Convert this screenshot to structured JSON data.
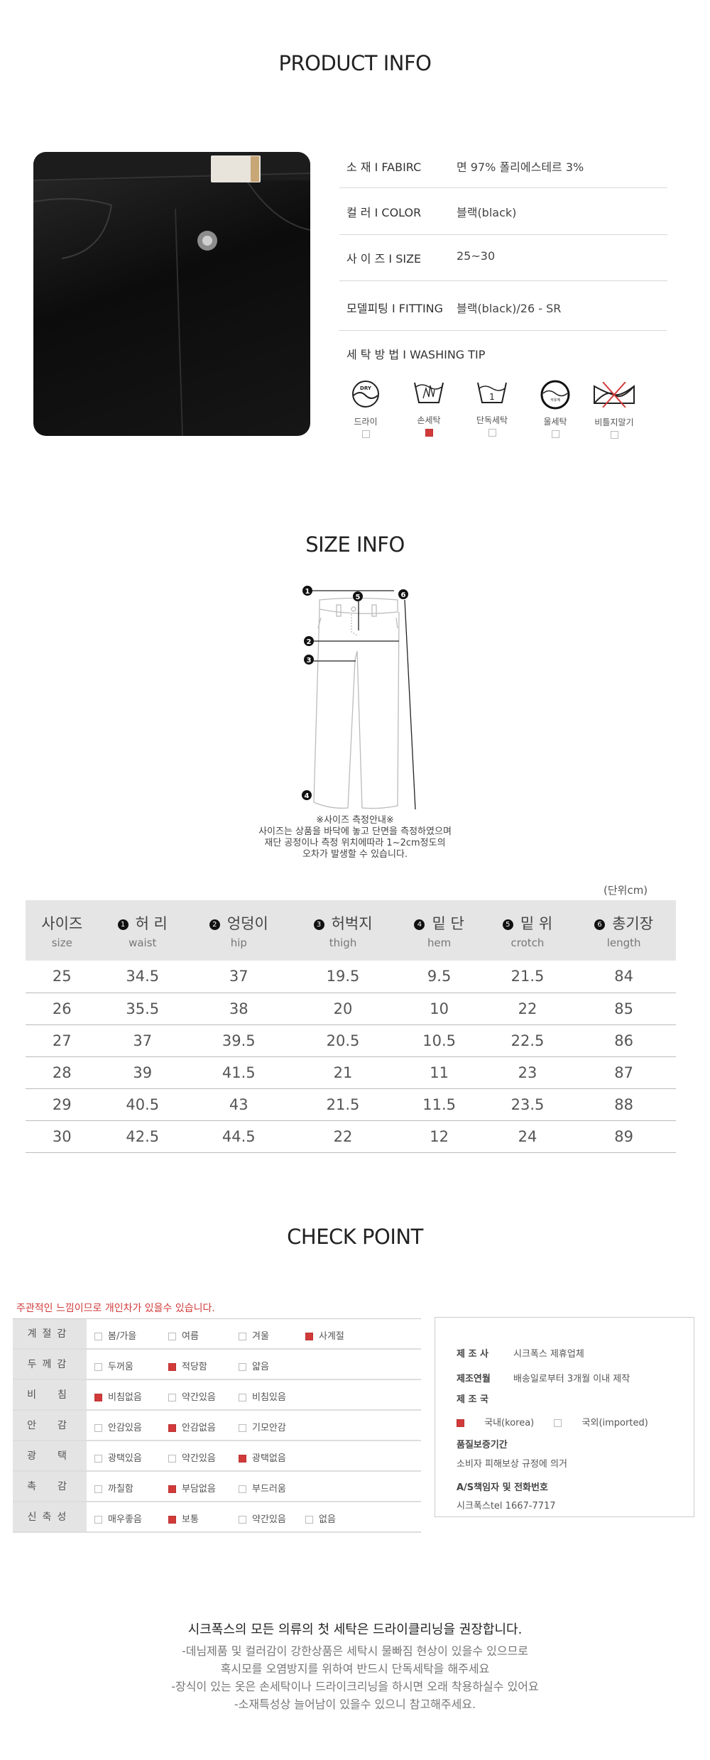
{
  "product_info": {
    "title": "PRODUCT INFO",
    "rows": [
      {
        "label": "소 재 Ι FABIRC",
        "value": "면 97% 폴리에스테르 3%"
      },
      {
        "label": "컬 러 Ι COLOR",
        "value": "블랙(black)"
      },
      {
        "label": "사 이 즈 Ι SIZE",
        "value": "25~30"
      },
      {
        "label": "모델피팅 Ι FITTING",
        "value": "블랙(black)/26  -  SR"
      }
    ],
    "washing_label": "세 탁 방 법 Ι WASHING TIP",
    "washing": [
      {
        "icon": "dry-clean-icon",
        "label": "드라이",
        "checked": false,
        "icon_text": "DRY"
      },
      {
        "icon": "hand-wash-icon",
        "label": "손세탁",
        "checked": true
      },
      {
        "icon": "separate-wash-icon",
        "label": "단독세탁",
        "checked": false,
        "icon_text": "1"
      },
      {
        "icon": "wool-wash-icon",
        "label": "울세탁",
        "checked": false,
        "icon_text": "석유계"
      },
      {
        "icon": "no-wring-icon",
        "label": "비틀지말기",
        "checked": false
      }
    ]
  },
  "size_info": {
    "title": "SIZE INFO",
    "diagram_markers": [
      "1",
      "2",
      "3",
      "4",
      "5",
      "6"
    ],
    "notes": [
      "※사이즈 측정안내※",
      "사이즈는 상품을 바닥에 놓고 단면을 측정하였으며",
      "재단 공정이나 측정 위치에따라 1~2cm정도의",
      "오차가 발생할 수 있습니다."
    ],
    "unit": "(단위cm)",
    "columns": [
      {
        "num": "",
        "ko": "사이즈",
        "en": "size"
      },
      {
        "num": "1",
        "ko": "허 리",
        "en": "waist"
      },
      {
        "num": "2",
        "ko": "엉덩이",
        "en": "hip"
      },
      {
        "num": "3",
        "ko": "허벅지",
        "en": "thigh"
      },
      {
        "num": "4",
        "ko": "밑 단",
        "en": "hem"
      },
      {
        "num": "5",
        "ko": "밑 위",
        "en": "crotch"
      },
      {
        "num": "6",
        "ko": "총기장",
        "en": "length"
      }
    ],
    "rows": [
      [
        "25",
        "34.5",
        "37",
        "19.5",
        "9.5",
        "21.5",
        "84"
      ],
      [
        "26",
        "35.5",
        "38",
        "20",
        "10",
        "22",
        "85"
      ],
      [
        "27",
        "37",
        "39.5",
        "20.5",
        "10.5",
        "22.5",
        "86"
      ],
      [
        "28",
        "39",
        "41.5",
        "21",
        "11",
        "23",
        "87"
      ],
      [
        "29",
        "40.5",
        "43",
        "21.5",
        "11.5",
        "23.5",
        "88"
      ],
      [
        "30",
        "42.5",
        "44.5",
        "22",
        "12",
        "24",
        "89"
      ]
    ]
  },
  "check_point": {
    "title": "CHECK POINT",
    "notice": "주관적인 느낌이므로 개인차가 있을수 있습니다.",
    "rows": [
      {
        "label": "계절감",
        "options": [
          {
            "t": "봄/가을",
            "on": false
          },
          {
            "t": "여름",
            "on": false
          },
          {
            "t": "겨울",
            "on": false
          },
          {
            "t": "사계절",
            "on": true
          }
        ]
      },
      {
        "label": "두께감",
        "options": [
          {
            "t": "두꺼움",
            "on": false
          },
          {
            "t": "적당함",
            "on": true
          },
          {
            "t": "얇음",
            "on": false
          }
        ]
      },
      {
        "label": "비　침",
        "options": [
          {
            "t": "비침없음",
            "on": true
          },
          {
            "t": "약간있음",
            "on": false
          },
          {
            "t": "비침있음",
            "on": false
          }
        ]
      },
      {
        "label": "안　감",
        "options": [
          {
            "t": "안감있음",
            "on": false
          },
          {
            "t": "안감없음",
            "on": true
          },
          {
            "t": "기모안감",
            "on": false
          }
        ]
      },
      {
        "label": "광　택",
        "options": [
          {
            "t": "광택있음",
            "on": false
          },
          {
            "t": "약간있음",
            "on": false
          },
          {
            "t": "광택없음",
            "on": true
          }
        ]
      },
      {
        "label": "촉　감",
        "options": [
          {
            "t": "까칠함",
            "on": false
          },
          {
            "t": "부담없음",
            "on": true
          },
          {
            "t": "부드러움",
            "on": false
          }
        ]
      },
      {
        "label": "신축성",
        "options": [
          {
            "t": "매우좋음",
            "on": false
          },
          {
            "t": "보통",
            "on": true
          },
          {
            "t": "약간있음",
            "on": false
          },
          {
            "t": "없음",
            "on": false
          }
        ]
      }
    ],
    "maker_label": "제 조 사",
    "maker": "시크폭스 제휴업체",
    "date_label": "제조연월",
    "date": "배송일로부터 3개월 이내 제작",
    "country_label": "제 조 국",
    "country_options": [
      {
        "t": "국내(korea)",
        "on": true
      },
      {
        "t": "국외(imported)",
        "on": false
      }
    ],
    "warranty_label": "품질보증기간",
    "warranty": "소비자 피해보상 규정에 의거",
    "as_label": "A/S책임자 및 전화번호",
    "as_value": "시크폭스tel 1667-7717"
  },
  "footer": {
    "headline": "시크폭스의 모든 의류의 첫 세탁은 드라이클리닝을 권장합니다.",
    "lines": [
      "-데님제품 및 컬러감이 강한상품은 세탁시 물빠짐 현상이 있을수 있으므로",
      "혹시모를 오염방지를 위하여 반드시 단독세탁을 해주세요",
      "-장식이 있는 옷은 손세탁이나 드라이크리닝을 하시면 오래 착용하실수 있어요",
      "-소재특성상 늘어남이 있을수 있으니 참고해주세요."
    ]
  },
  "colors": {
    "accent_red": "#d23a3a",
    "header_gray": "#e5e5e5"
  }
}
